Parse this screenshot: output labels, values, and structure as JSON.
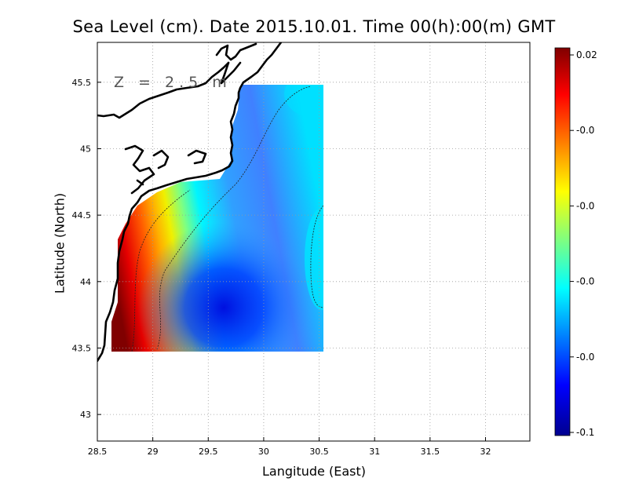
{
  "map": {
    "title": "Sea Level (cm). Date 2015.10.01. Time 00(h):00(m) GMT",
    "annotation": "Z = 2.5 m",
    "xlabel": "Langitude (East)",
    "ylabel": "Latitude (North)",
    "xlim": [
      28.5,
      32.4
    ],
    "ylim": [
      42.8,
      45.8
    ],
    "x_ticks": [
      "28.5",
      "29",
      "29.5",
      "30",
      "30.5",
      "31",
      "31.5",
      "32"
    ],
    "y_ticks": [
      "43",
      "43.5",
      "44",
      "44.5",
      "45",
      "45.5"
    ],
    "grid": true,
    "colormap": "jet",
    "colors": {
      "low": "#00008f",
      "mid": "#00ffff",
      "high": "#800000",
      "land": "#ffffff",
      "coastline": "#000000"
    },
    "colorbar_labels": [
      "0.02",
      "-0.0",
      "-0.0",
      "-0.0",
      "-0.0",
      "-0.1"
    ],
    "colorbar_range": [
      -0.1,
      0.02
    ],
    "data_domain": {
      "lon": [
        28.6,
        30.5
      ],
      "lat": [
        43.5,
        45.5
      ]
    }
  }
}
